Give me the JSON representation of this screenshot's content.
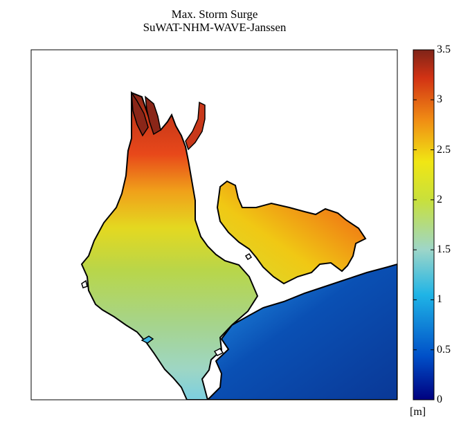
{
  "title": {
    "line1": "Max. Storm Surge",
    "line2": "SuWAT-NHM-WAVE-Janssen"
  },
  "colorbar": {
    "min": 0,
    "max": 3.5,
    "ticks": [
      "0",
      "0.5",
      "1",
      "1.5",
      "2",
      "2.5",
      "3",
      "3.5"
    ],
    "unit": "[m]",
    "colormap": "jet",
    "colors": [
      "#00007f",
      "#0050c8",
      "#1fb4e6",
      "#9ed6c8",
      "#c8e03c",
      "#f0e614",
      "#f08c14",
      "#d23214",
      "#7f2418"
    ]
  },
  "map": {
    "variable": "maximum storm surge height",
    "coastline_color": "#000000",
    "land_color": "#ffffff"
  }
}
